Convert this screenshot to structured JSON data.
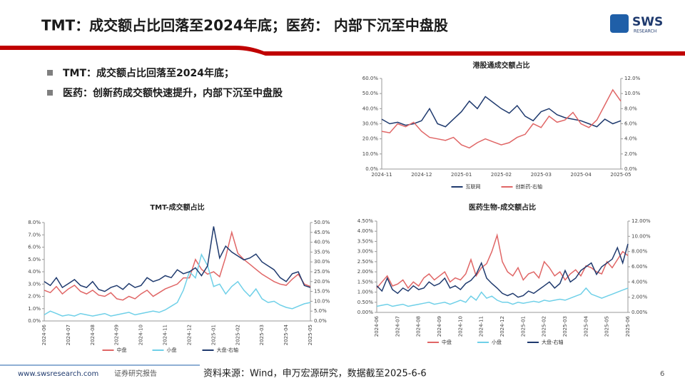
{
  "header": {
    "title": "TMT：成交额占比回落至2024年底；医药： 内部下沉至中盘股",
    "logo": "SWS",
    "logo_sub": "RESEARCH"
  },
  "bullets": [
    "TMT：成交额占比回落至2024年底；",
    "医药：创新药成交额快速提升，内部下沉至中盘股"
  ],
  "footer": {
    "site": "www.swsresearch.com",
    "label": "证券研究报告",
    "source": "资料来源：Wind，申万宏源研究，数据截至2025-6-6",
    "page": "6"
  },
  "chart_data": [
    {
      "type": "line",
      "title": "港股通成交额占比",
      "categories": [
        "2024-11",
        null,
        null,
        null,
        null,
        "2024-12",
        null,
        null,
        null,
        null,
        "2025-01",
        null,
        null,
        null,
        null,
        "2025-02",
        null,
        null,
        null,
        null,
        "2025-03",
        null,
        null,
        null,
        null,
        "2025-04",
        null,
        null,
        null,
        null,
        "2025-05"
      ],
      "series": [
        {
          "name": "互联网",
          "color": "#1f3a6e",
          "values": [
            33,
            30,
            31,
            29,
            30,
            32,
            40,
            30,
            28,
            33,
            38,
            45,
            40,
            48,
            44,
            40,
            37,
            42,
            35,
            32,
            38,
            40,
            36,
            34,
            33,
            32,
            30,
            28,
            33,
            30,
            32
          ]
        },
        {
          "name": "创新药-右轴",
          "color": "#e06666",
          "axis": "y2",
          "values": [
            5,
            4.8,
            6,
            5.6,
            6.2,
            5,
            4.2,
            4,
            3.8,
            4.2,
            3.2,
            2.8,
            3.5,
            4,
            3.6,
            3.2,
            3.5,
            4.2,
            4.6,
            6,
            5.5,
            7,
            6.2,
            6.5,
            7.5,
            6,
            5.5,
            6.5,
            8.5,
            10.5,
            9
          ]
        }
      ],
      "ylim": [
        0,
        60
      ],
      "yticks": [
        {
          "value": 0,
          "label": "0.0%"
        },
        {
          "value": 10,
          "label": "10.0%"
        },
        {
          "value": 20,
          "label": "20.0%"
        },
        {
          "value": 30,
          "label": "30.0%"
        },
        {
          "value": 40,
          "label": "40.0%"
        },
        {
          "value": 50,
          "label": "50.0%"
        },
        {
          "value": 60,
          "label": "60.0%"
        }
      ],
      "y2lim": [
        0,
        12
      ],
      "y2ticks": [
        {
          "value": 0,
          "label": "0.0%"
        },
        {
          "value": 2,
          "label": "2.0%"
        },
        {
          "value": 4,
          "label": "4.0%"
        },
        {
          "value": 6,
          "label": "6.0%"
        },
        {
          "value": 8,
          "label": "8.0%"
        },
        {
          "value": 10,
          "label": "10.0%"
        },
        {
          "value": 12,
          "label": "12.0%"
        }
      ]
    },
    {
      "type": "line",
      "title": "TMT-成交额占比",
      "categories": [
        "2024-06",
        null,
        null,
        null,
        "2024-07",
        null,
        null,
        null,
        "2024-08",
        null,
        null,
        null,
        "2024-09",
        null,
        null,
        null,
        "2024-10",
        null,
        null,
        null,
        "2024-11",
        null,
        null,
        null,
        "2024-12",
        null,
        null,
        null,
        "2025-01",
        null,
        null,
        null,
        "2025-02",
        null,
        null,
        null,
        "2025-03",
        null,
        null,
        null,
        "2025-04",
        null,
        null,
        null,
        "2025-05"
      ],
      "series": [
        {
          "name": "中盘",
          "color": "#e06666",
          "values": [
            2.5,
            2.3,
            2.8,
            2.2,
            2.6,
            2.9,
            2.4,
            2.2,
            2.5,
            2.1,
            2.0,
            2.3,
            1.8,
            1.7,
            2.0,
            1.8,
            2.2,
            2.5,
            2.0,
            2.3,
            2.6,
            2.8,
            3.0,
            3.5,
            3.5,
            5.0,
            4.2,
            3.8,
            4.0,
            3.6,
            5.2,
            7.2,
            5.5,
            5.0,
            4.6,
            4.2,
            3.8,
            3.5,
            3.2,
            3.0,
            2.9,
            3.4,
            3.8,
            3.0,
            2.8
          ]
        },
        {
          "name": "小盘",
          "color": "#6fd0e8",
          "values": [
            0.5,
            0.8,
            0.6,
            0.4,
            0.5,
            0.4,
            0.6,
            0.5,
            0.4,
            0.5,
            0.6,
            0.4,
            0.5,
            0.6,
            0.7,
            0.5,
            0.6,
            0.7,
            0.8,
            0.7,
            0.9,
            1.2,
            1.5,
            2.5,
            4.0,
            3.5,
            5.4,
            4.5,
            2.8,
            3.0,
            2.2,
            2.8,
            3.2,
            2.5,
            2.0,
            2.6,
            1.8,
            1.5,
            1.6,
            1.3,
            1.1,
            1.0,
            1.2,
            1.4,
            1.5
          ]
        },
        {
          "name": "大盘-右轴",
          "color": "#1f3a6e",
          "axis": "y2",
          "values": [
            20,
            18,
            22,
            17,
            19,
            21,
            18,
            17,
            20,
            16,
            15,
            17,
            18,
            16,
            19,
            17,
            18,
            22,
            20,
            21,
            23,
            22,
            26,
            24,
            25,
            27,
            23,
            28,
            48,
            32,
            38,
            35,
            33,
            31,
            32,
            34,
            30,
            28,
            26,
            22,
            20,
            24,
            25,
            18,
            17
          ]
        }
      ],
      "ylim": [
        0,
        8
      ],
      "yticks": [
        {
          "value": 0,
          "label": "0.0%"
        },
        {
          "value": 1,
          "label": "1.0%"
        },
        {
          "value": 2,
          "label": "2.0%"
        },
        {
          "value": 3,
          "label": "3.0%"
        },
        {
          "value": 4,
          "label": "4.0%"
        },
        {
          "value": 5,
          "label": "5.0%"
        },
        {
          "value": 6,
          "label": "6.0%"
        },
        {
          "value": 7,
          "label": "7.0%"
        },
        {
          "value": 8,
          "label": "8.0%"
        }
      ],
      "y2lim": [
        0,
        50
      ],
      "y2ticks": [
        {
          "value": 0,
          "label": "0.0%"
        },
        {
          "value": 5,
          "label": "5.0%"
        },
        {
          "value": 10,
          "label": "10.0%"
        },
        {
          "value": 15,
          "label": "15.0%"
        },
        {
          "value": 20,
          "label": "20.0%"
        },
        {
          "value": 25,
          "label": "25.0%"
        },
        {
          "value": 30,
          "label": "30.0%"
        },
        {
          "value": 35,
          "label": "35.0%"
        },
        {
          "value": 40,
          "label": "40.0%"
        },
        {
          "value": 45,
          "label": "45.0%"
        },
        {
          "value": 50,
          "label": "50.0%"
        }
      ]
    },
    {
      "type": "line",
      "title": "医药生物-成交额占比",
      "categories": [
        "2024-06",
        null,
        null,
        null,
        "2024-07",
        null,
        null,
        null,
        "2024-08",
        null,
        null,
        null,
        "2024-09",
        null,
        null,
        null,
        "2024-10",
        null,
        null,
        null,
        "2024-11",
        null,
        null,
        null,
        "2024-12",
        null,
        null,
        null,
        "2025-01",
        null,
        null,
        null,
        "2025-02",
        null,
        null,
        null,
        "2025-03",
        null,
        null,
        null,
        "2025-04",
        null,
        null,
        null,
        "2025-05",
        null,
        null,
        null,
        "2025-06"
      ],
      "series": [
        {
          "name": "中盘",
          "color": "#e06666",
          "values": [
            1.2,
            1.5,
            1.8,
            1.3,
            1.4,
            1.6,
            1.2,
            1.5,
            1.3,
            1.7,
            1.9,
            1.6,
            1.8,
            2.0,
            1.5,
            1.7,
            1.6,
            1.9,
            2.6,
            1.8,
            2.2,
            2.4,
            3.0,
            3.8,
            2.5,
            2.0,
            1.8,
            2.2,
            1.6,
            1.9,
            2.0,
            1.7,
            2.5,
            2.2,
            1.8,
            2.0,
            1.6,
            1.9,
            2.1,
            1.8,
            2.3,
            2.2,
            2.0,
            1.9,
            2.5,
            2.2,
            2.6,
            3.0,
            2.8
          ]
        },
        {
          "name": "小盘",
          "color": "#6fd0e8",
          "values": [
            0.3,
            0.35,
            0.4,
            0.3,
            0.35,
            0.4,
            0.3,
            0.35,
            0.4,
            0.45,
            0.5,
            0.4,
            0.45,
            0.5,
            0.4,
            0.5,
            0.6,
            0.5,
            0.8,
            0.6,
            1.0,
            0.7,
            0.8,
            0.6,
            0.5,
            0.5,
            0.4,
            0.5,
            0.45,
            0.5,
            0.55,
            0.5,
            0.6,
            0.55,
            0.6,
            0.65,
            0.6,
            0.7,
            0.8,
            0.9,
            1.2,
            0.9,
            0.8,
            0.7,
            0.8,
            0.9,
            1.0,
            1.1,
            1.2
          ]
        },
        {
          "name": "大盘-右轴",
          "color": "#1f3a6e",
          "axis": "y2",
          "values": [
            3.5,
            2.8,
            4.5,
            3.0,
            2.5,
            3.2,
            2.8,
            3.5,
            3.0,
            3.2,
            4.0,
            3.5,
            3.8,
            4.5,
            3.2,
            3.5,
            3.0,
            3.8,
            4.2,
            5.0,
            6.5,
            4.5,
            3.8,
            3.2,
            2.5,
            2.2,
            2.5,
            2.0,
            2.2,
            2.8,
            2.5,
            3.0,
            3.5,
            4.0,
            3.2,
            3.8,
            5.5,
            4.0,
            4.5,
            5.5,
            6.0,
            6.5,
            5.0,
            6.0,
            6.5,
            7.0,
            8.5,
            6.5,
            9.0
          ]
        }
      ],
      "ylim": [
        0,
        4.5
      ],
      "yticks": [
        {
          "value": 0,
          "label": "0.00%"
        },
        {
          "value": 0.5,
          "label": "0.50%"
        },
        {
          "value": 1,
          "label": "1.00%"
        },
        {
          "value": 1.5,
          "label": "1.50%"
        },
        {
          "value": 2,
          "label": "2.00%"
        },
        {
          "value": 2.5,
          "label": "2.50%"
        },
        {
          "value": 3,
          "label": "3.00%"
        },
        {
          "value": 3.5,
          "label": "3.50%"
        },
        {
          "value": 4,
          "label": "4.00%"
        },
        {
          "value": 4.5,
          "label": "4.50%"
        }
      ],
      "y2lim": [
        0,
        12
      ],
      "y2ticks": [
        {
          "value": 0,
          "label": "0.00%"
        },
        {
          "value": 2,
          "label": "2.00%"
        },
        {
          "value": 4,
          "label": "4.00%"
        },
        {
          "value": 6,
          "label": "6.00%"
        },
        {
          "value": 8,
          "label": "8.00%"
        },
        {
          "value": 10,
          "label": "10.00%"
        },
        {
          "value": 12,
          "label": "12.00%"
        }
      ]
    }
  ]
}
